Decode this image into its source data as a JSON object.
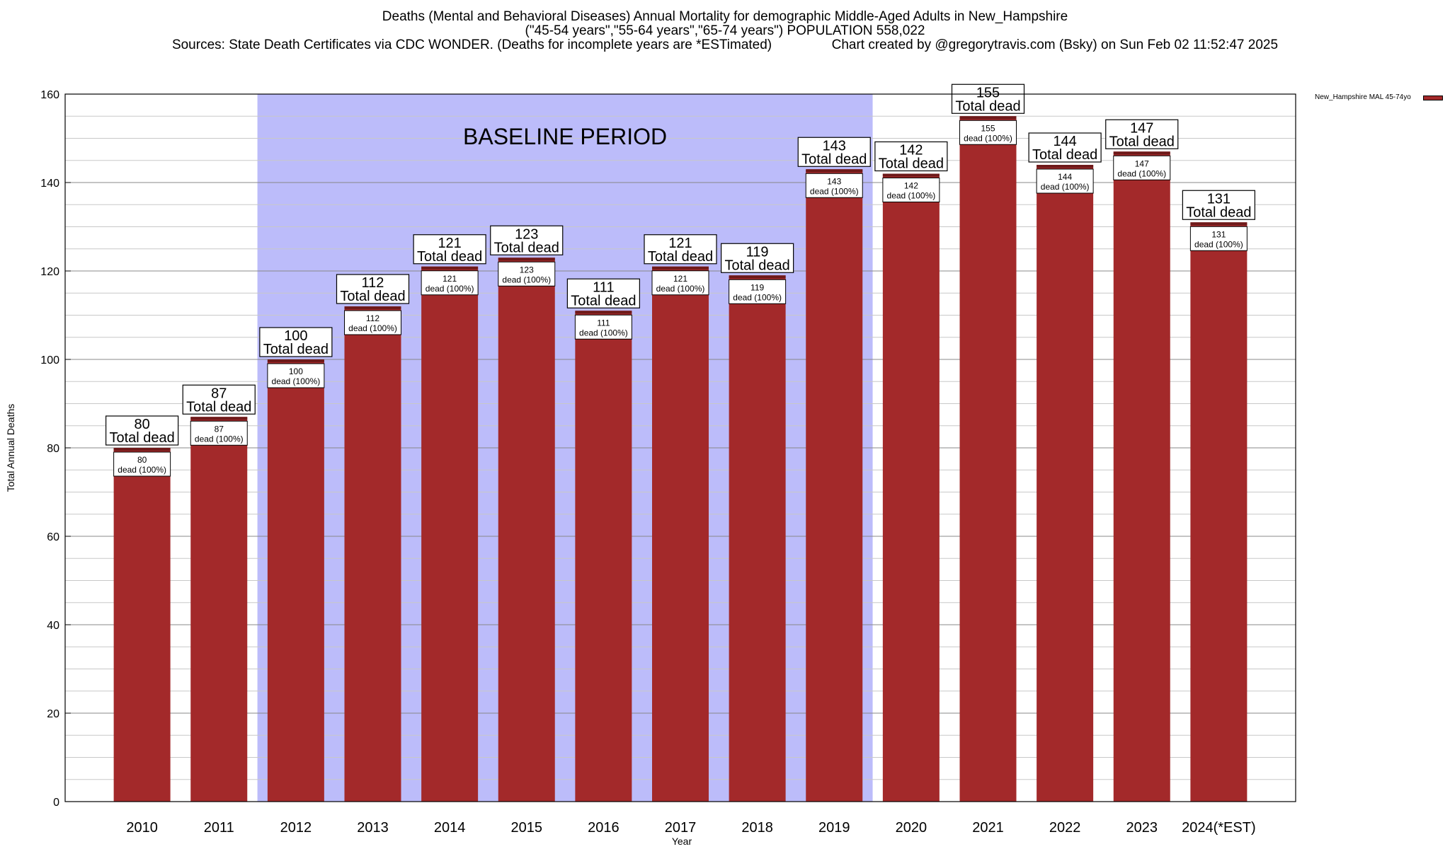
{
  "chart_data": {
    "type": "bar",
    "title": "Deaths (Mental and Behavioral Diseases) Annual Mortality for demographic Middle-Aged Adults in New_Hampshire",
    "subtitle": "(\"45-54 years\",\"55-64 years\",\"65-74 years\") POPULATION 558,022",
    "sources": "Sources: State Death Certificates via CDC WONDER. (Deaths for incomplete years are *ESTimated)",
    "credit": "Chart created by @gregorytravis.com (Bsky) on Sun Feb 02 11:52:47 2025",
    "xlabel": "Year",
    "ylabel": "Total Annual Deaths",
    "ylim": [
      0,
      160
    ],
    "yticks": [
      0,
      20,
      40,
      60,
      80,
      100,
      120,
      140,
      160
    ],
    "grid": true,
    "legend_position": "top-right",
    "categories": [
      "2010",
      "2011",
      "2012",
      "2013",
      "2014",
      "2015",
      "2016",
      "2017",
      "2018",
      "2019",
      "2020",
      "2021",
      "2022",
      "2023",
      "2024(*EST)"
    ],
    "series": [
      {
        "name": "New_Hampshire MAL 45-74yo",
        "values": [
          80,
          87,
          100,
          112,
          121,
          123,
          111,
          121,
          119,
          143,
          142,
          155,
          144,
          147,
          131
        ],
        "color": "#a3292a"
      }
    ],
    "total_label_suffix": "Total dead",
    "inner_label_suffix": "dead (100%)",
    "baseline": {
      "label": "BASELINE PERIOD",
      "start": "2012",
      "end": "2019",
      "color": "#bcbcfa"
    }
  }
}
